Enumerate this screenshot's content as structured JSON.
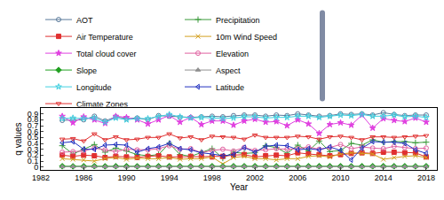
{
  "chart_data": {
    "type": "line",
    "x_label": "Year",
    "y_label": "q values",
    "x": [
      1984,
      1985,
      1986,
      1987,
      1988,
      1989,
      1990,
      1991,
      1992,
      1993,
      1994,
      1995,
      1996,
      1997,
      1998,
      1999,
      2000,
      2001,
      2002,
      2003,
      2004,
      2005,
      2006,
      2007,
      2008,
      2009,
      2010,
      2011,
      2012,
      2013,
      2014,
      2015,
      2016,
      2017,
      2018
    ],
    "xlim": [
      1982,
      2019
    ],
    "xticks": [
      1982,
      1986,
      1990,
      1994,
      1998,
      2002,
      2006,
      2010,
      2014,
      2018
    ],
    "ylim": [
      -0.05,
      1
    ],
    "yticks": [
      0,
      0.1,
      0.2,
      0.3,
      0.4,
      0.5,
      0.6,
      0.7,
      0.8,
      0.9
    ],
    "grid": false,
    "legend": "top",
    "series": [
      {
        "name": "AOT",
        "color": "#5a7a9a",
        "marker": "circle-open",
        "values": [
          0.79,
          0.8,
          0.8,
          0.86,
          0.78,
          0.85,
          0.82,
          0.83,
          0.8,
          0.87,
          0.86,
          0.84,
          0.84,
          0.85,
          0.86,
          0.85,
          0.87,
          0.88,
          0.88,
          0.86,
          0.88,
          0.87,
          0.9,
          0.88,
          0.86,
          0.87,
          0.9,
          0.89,
          0.9,
          0.88,
          0.92,
          0.89,
          0.87,
          0.88,
          0.88
        ]
      },
      {
        "name": "Precipitation",
        "color": "#3a9a3a",
        "marker": "cross-thin-open",
        "values": [
          0.36,
          0.22,
          0.3,
          0.38,
          0.25,
          0.32,
          0.27,
          0.21,
          0.19,
          0.21,
          0.4,
          0.21,
          0.18,
          0.25,
          0.31,
          0.15,
          0.25,
          0.23,
          0.24,
          0.36,
          0.33,
          0.23,
          0.37,
          0.27,
          0.44,
          0.26,
          0.28,
          0.4,
          0.37,
          0.46,
          0.42,
          0.43,
          0.43,
          0.41,
          0.42
        ]
      },
      {
        "name": "Air Temperature",
        "color": "#e03030",
        "marker": "square",
        "values": [
          0.2,
          0.18,
          0.2,
          0.19,
          0.16,
          0.18,
          0.17,
          0.16,
          0.18,
          0.19,
          0.17,
          0.17,
          0.18,
          0.18,
          0.17,
          0.18,
          0.2,
          0.21,
          0.17,
          0.19,
          0.2,
          0.19,
          0.24,
          0.22,
          0.21,
          0.19,
          0.21,
          0.23,
          0.24,
          0.23,
          0.25,
          0.25,
          0.24,
          0.24,
          0.17
        ]
      },
      {
        "name": "10m Wind Speed",
        "color": "#d4a020",
        "marker": "x-thin-open",
        "values": [
          0.14,
          0.13,
          0.12,
          0.1,
          0.14,
          0.16,
          0.13,
          0.15,
          0.14,
          0.14,
          0.16,
          0.13,
          0.14,
          0.14,
          0.17,
          0.05,
          0.16,
          0.18,
          0.14,
          0.14,
          0.12,
          0.14,
          0.14,
          0.18,
          0.19,
          0.17,
          0.22,
          0.24,
          0.23,
          0.22,
          0.13,
          0.16,
          0.18,
          0.19,
          0.16
        ]
      },
      {
        "name": "Total cloud cover",
        "color": "#e040e0",
        "marker": "star",
        "values": [
          0.86,
          0.75,
          0.85,
          0.8,
          0.74,
          0.86,
          0.84,
          0.8,
          0.73,
          0.8,
          0.87,
          0.76,
          0.84,
          0.72,
          0.78,
          0.78,
          0.71,
          0.78,
          0.81,
          0.76,
          0.77,
          0.7,
          0.8,
          0.73,
          0.57,
          0.72,
          0.75,
          0.71,
          0.88,
          0.66,
          0.82,
          0.79,
          0.77,
          0.83,
          0.76
        ]
      },
      {
        "name": "Elevation",
        "color": "#e060a0",
        "marker": "circle-open",
        "values": [
          0.25,
          0.26,
          0.27,
          0.32,
          0.29,
          0.26,
          0.3,
          0.29,
          0.29,
          0.31,
          0.36,
          0.3,
          0.31,
          0.24,
          0.28,
          0.3,
          0.27,
          0.33,
          0.28,
          0.29,
          0.31,
          0.3,
          0.31,
          0.34,
          0.3,
          0.33,
          0.38,
          0.31,
          0.34,
          0.32,
          0.31,
          0.35,
          0.33,
          0.31,
          0.32
        ]
      },
      {
        "name": "Slope",
        "color": "#20a020",
        "marker": "diamond",
        "values": [
          0.012,
          0.011,
          0.012,
          0.013,
          0.011,
          0.012,
          0.012,
          0.011,
          0.012,
          0.012,
          0.013,
          0.012,
          0.011,
          0.012,
          0.012,
          0.011,
          0.012,
          0.012,
          0.013,
          0.012,
          0.012,
          0.011,
          0.012,
          0.012,
          0.013,
          0.012,
          0.012,
          0.011,
          0.012,
          0.012,
          0.013,
          0.012,
          0.012,
          0.011,
          0.012
        ]
      },
      {
        "name": "Aspect",
        "color": "#909090",
        "marker": "triangle-up",
        "values": [
          0.004,
          0.005,
          0.004,
          0.005,
          0.004,
          0.005,
          0.004,
          0.005,
          0.004,
          0.005,
          0.004,
          0.005,
          0.004,
          0.005,
          0.004,
          0.005,
          0.004,
          0.005,
          0.004,
          0.005,
          0.004,
          0.005,
          0.004,
          0.005,
          0.004,
          0.005,
          0.004,
          0.005,
          0.004,
          0.005,
          0.004,
          0.005,
          0.004,
          0.005,
          0.004
        ]
      },
      {
        "name": "Longitude",
        "color": "#40d0e0",
        "marker": "star-open",
        "values": [
          0.82,
          0.83,
          0.82,
          0.83,
          0.76,
          0.83,
          0.8,
          0.82,
          0.82,
          0.85,
          0.89,
          0.85,
          0.83,
          0.84,
          0.83,
          0.82,
          0.83,
          0.85,
          0.85,
          0.83,
          0.84,
          0.84,
          0.86,
          0.86,
          0.84,
          0.86,
          0.88,
          0.87,
          0.89,
          0.86,
          0.86,
          0.88,
          0.85,
          0.86,
          0.84
        ]
      },
      {
        "name": "Latitude",
        "color": "#2030c0",
        "marker": "triangle-left-open",
        "values": [
          0.41,
          0.43,
          0.3,
          0.3,
          0.37,
          0.38,
          0.37,
          0.25,
          0.31,
          0.34,
          0.4,
          0.31,
          0.29,
          0.24,
          0.22,
          0.19,
          0.21,
          0.33,
          0.25,
          0.35,
          0.37,
          0.36,
          0.29,
          0.31,
          0.29,
          0.34,
          0.28,
          0.12,
          0.32,
          0.43,
          0.42,
          0.42,
          0.4,
          0.29,
          0.23
        ]
      },
      {
        "name": "Climate Zones",
        "color": "#e03030",
        "marker": "triangle-down-open",
        "values": [
          0.47,
          0.48,
          0.44,
          0.56,
          0.46,
          0.51,
          0.46,
          0.47,
          0.5,
          0.5,
          0.56,
          0.49,
          0.51,
          0.46,
          0.52,
          0.51,
          0.5,
          0.47,
          0.54,
          0.5,
          0.5,
          0.5,
          0.52,
          0.51,
          0.47,
          0.51,
          0.52,
          0.5,
          0.46,
          0.51,
          0.51,
          0.5,
          0.51,
          0.52,
          0.53
        ]
      }
    ]
  }
}
